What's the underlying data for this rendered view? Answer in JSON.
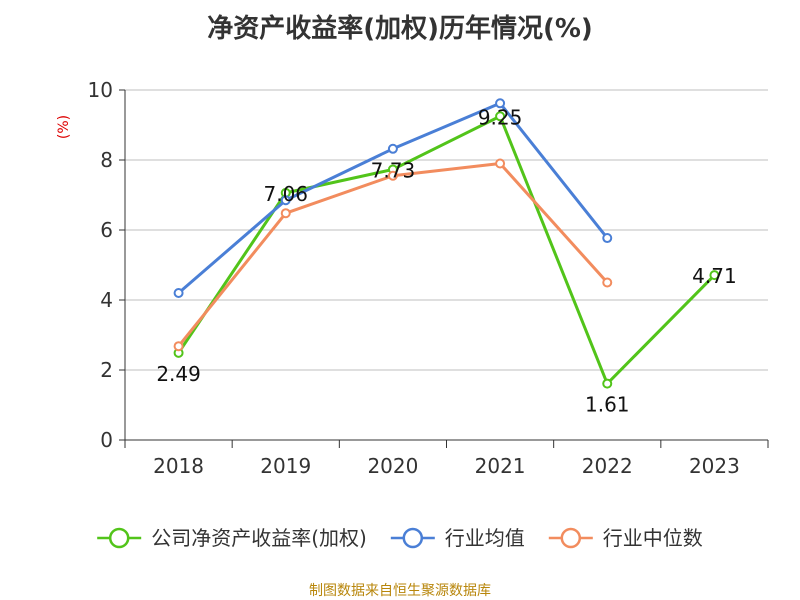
{
  "title": "净资产收益率(加权)历年情况(%)",
  "source": "制图数据来自恒生聚源数据库",
  "chart_data": {
    "type": "line",
    "title": "净资产收益率(加权)历年情况(%)",
    "ylabel": "(%)",
    "xlabel": "",
    "ylim": [
      0,
      10
    ],
    "yticks": [
      0,
      2,
      4,
      6,
      8,
      10
    ],
    "grid": true,
    "legend_position": "bottom",
    "categories": [
      "2018",
      "2019",
      "2020",
      "2021",
      "2022",
      "2023"
    ],
    "series": [
      {
        "name": "公司净资产收益率(加权)",
        "color": "#52c41a",
        "values": [
          2.49,
          7.06,
          7.73,
          9.25,
          1.61,
          4.71
        ],
        "labels": [
          "2.49",
          "7.06",
          "7.73",
          "9.25",
          "1.61",
          "4.71"
        ],
        "show_labels": true
      },
      {
        "name": "行业均值",
        "color": "#4a7fd6",
        "values": [
          4.2,
          6.85,
          8.32,
          9.62,
          5.77,
          null
        ],
        "show_labels": false
      },
      {
        "name": "行业中位数",
        "color": "#f28c5e",
        "values": [
          2.68,
          6.48,
          7.55,
          7.9,
          4.5,
          null
        ],
        "show_labels": false
      }
    ]
  }
}
